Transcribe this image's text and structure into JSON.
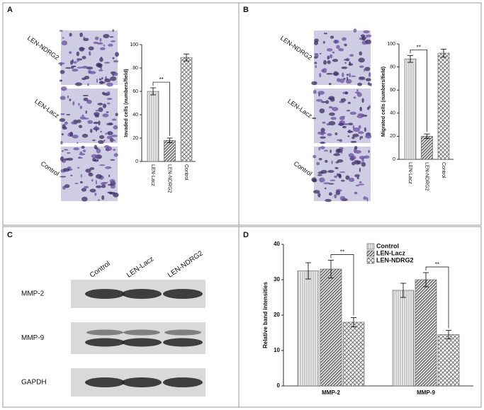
{
  "panel_labels": [
    "A",
    "B",
    "C",
    "D"
  ],
  "image_labels_a": [
    "LEN-NDRG2",
    "LEN-Lacz",
    "Control"
  ],
  "image_labels_b": [
    "LEN-NDRG2",
    "LEN-Lacz",
    "Control"
  ],
  "blot": {
    "lanes": [
      "Control",
      "LEN-Lacz",
      "LEN-NDRG2"
    ],
    "rows": [
      "MMP-2",
      "MMP-9",
      "GAPDH"
    ]
  },
  "chart_data": [
    {
      "type": "bar",
      "y_label": "Invaded cells (numbers/field)",
      "categories": [
        "LEN-Lacz",
        "LEN-NDRG2",
        "Control"
      ],
      "values": [
        60,
        18,
        89
      ],
      "errors": [
        3,
        2,
        3
      ],
      "patterns": [
        "vertical",
        "diagonal",
        "cross"
      ],
      "ylim": [
        0,
        100
      ],
      "yticks": [
        0,
        20,
        40,
        60,
        80,
        100
      ],
      "annotations": [
        {
          "text": "**",
          "from": 0,
          "to": 1
        }
      ]
    },
    {
      "type": "bar",
      "y_label": "Migrated cells (numbers/field)",
      "categories": [
        "LEN-Lacz",
        "LEN-NDRG2",
        "Control"
      ],
      "values": [
        87,
        20,
        92
      ],
      "errors": [
        3,
        2,
        3.5
      ],
      "patterns": [
        "vertical",
        "diagonal",
        "cross"
      ],
      "ylim": [
        0,
        100
      ],
      "yticks": [
        0,
        20,
        40,
        60,
        80,
        100
      ],
      "annotations": [
        {
          "text": "**",
          "from": 0,
          "to": 1
        }
      ]
    },
    {
      "type": "grouped_bar",
      "y_label": "Relative band intensities",
      "categories": [
        "MMP-2",
        "MMP-9"
      ],
      "series": [
        {
          "name": "Control",
          "pattern": "vertical",
          "values": [
            32.5,
            27
          ],
          "errors": [
            2.3,
            2
          ]
        },
        {
          "name": "LEN-Lacz",
          "pattern": "diagonal",
          "values": [
            33,
            30
          ],
          "errors": [
            2.5,
            2
          ]
        },
        {
          "name": "LEN-NDRG2",
          "pattern": "cross",
          "values": [
            18,
            14.5
          ],
          "errors": [
            1.3,
            1.2
          ]
        }
      ],
      "ylim": [
        0,
        40
      ],
      "yticks": [
        0,
        10,
        20,
        30,
        40
      ],
      "legend": "top-right",
      "annotations": [
        {
          "text": "**",
          "category": 0,
          "from": 1,
          "to": 2
        },
        {
          "text": "**",
          "category": 1,
          "from": 1,
          "to": 2
        }
      ]
    }
  ]
}
